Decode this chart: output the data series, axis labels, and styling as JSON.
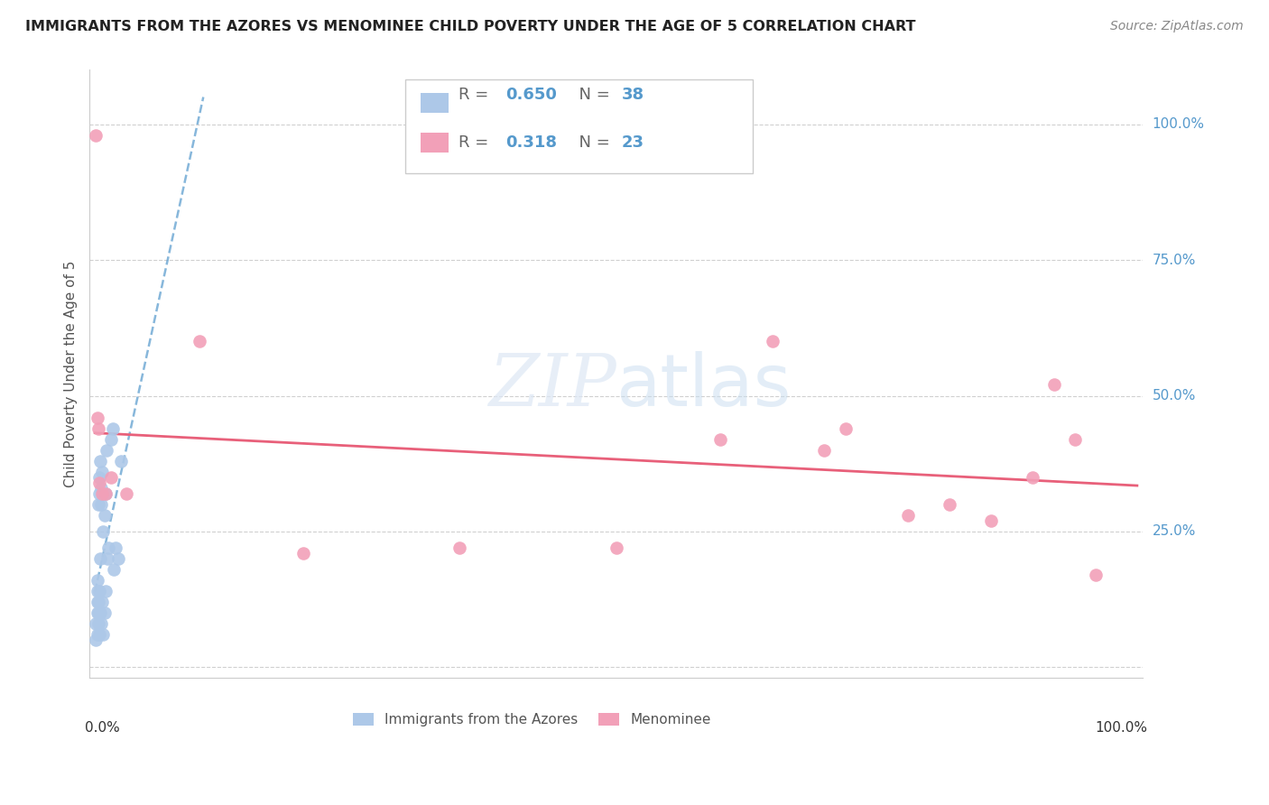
{
  "title": "IMMIGRANTS FROM THE AZORES VS MENOMINEE CHILD POVERTY UNDER THE AGE OF 5 CORRELATION CHART",
  "source": "Source: ZipAtlas.com",
  "ylabel": "Child Poverty Under the Age of 5",
  "blue_R": 0.65,
  "blue_N": 38,
  "pink_R": 0.318,
  "pink_N": 23,
  "legend_blue": "Immigrants from the Azores",
  "legend_pink": "Menominee",
  "blue_color": "#adc8e8",
  "blue_line_color": "#5599cc",
  "pink_color": "#f2a0b8",
  "pink_line_color": "#e8607a",
  "blue_points_x": [
    0.001,
    0.001,
    0.002,
    0.002,
    0.002,
    0.002,
    0.002,
    0.003,
    0.003,
    0.003,
    0.003,
    0.004,
    0.004,
    0.004,
    0.004,
    0.005,
    0.005,
    0.005,
    0.006,
    0.006,
    0.006,
    0.007,
    0.007,
    0.008,
    0.008,
    0.009,
    0.009,
    0.01,
    0.01,
    0.011,
    0.012,
    0.013,
    0.015,
    0.017,
    0.018,
    0.02,
    0.022,
    0.025
  ],
  "blue_points_y": [
    0.05,
    0.08,
    0.1,
    0.12,
    0.14,
    0.16,
    0.06,
    0.08,
    0.1,
    0.12,
    0.3,
    0.14,
    0.32,
    0.35,
    0.06,
    0.38,
    0.2,
    0.1,
    0.3,
    0.33,
    0.08,
    0.36,
    0.12,
    0.25,
    0.06,
    0.28,
    0.1,
    0.32,
    0.14,
    0.4,
    0.2,
    0.22,
    0.42,
    0.44,
    0.18,
    0.22,
    0.2,
    0.38
  ],
  "pink_points_x": [
    0.001,
    0.002,
    0.003,
    0.004,
    0.007,
    0.01,
    0.015,
    0.03,
    0.1,
    0.2,
    0.35,
    0.5,
    0.6,
    0.65,
    0.7,
    0.72,
    0.78,
    0.82,
    0.86,
    0.9,
    0.92,
    0.94,
    0.96
  ],
  "pink_points_y": [
    0.98,
    0.46,
    0.44,
    0.34,
    0.32,
    0.32,
    0.35,
    0.32,
    0.6,
    0.21,
    0.22,
    0.22,
    0.42,
    0.6,
    0.4,
    0.44,
    0.28,
    0.3,
    0.27,
    0.35,
    0.52,
    0.42,
    0.17
  ],
  "ytick_positions": [
    0.0,
    0.25,
    0.5,
    0.75,
    1.0
  ],
  "ytick_labels_right": [
    "",
    "25.0%",
    "50.0%",
    "75.0%",
    "100.0%"
  ]
}
